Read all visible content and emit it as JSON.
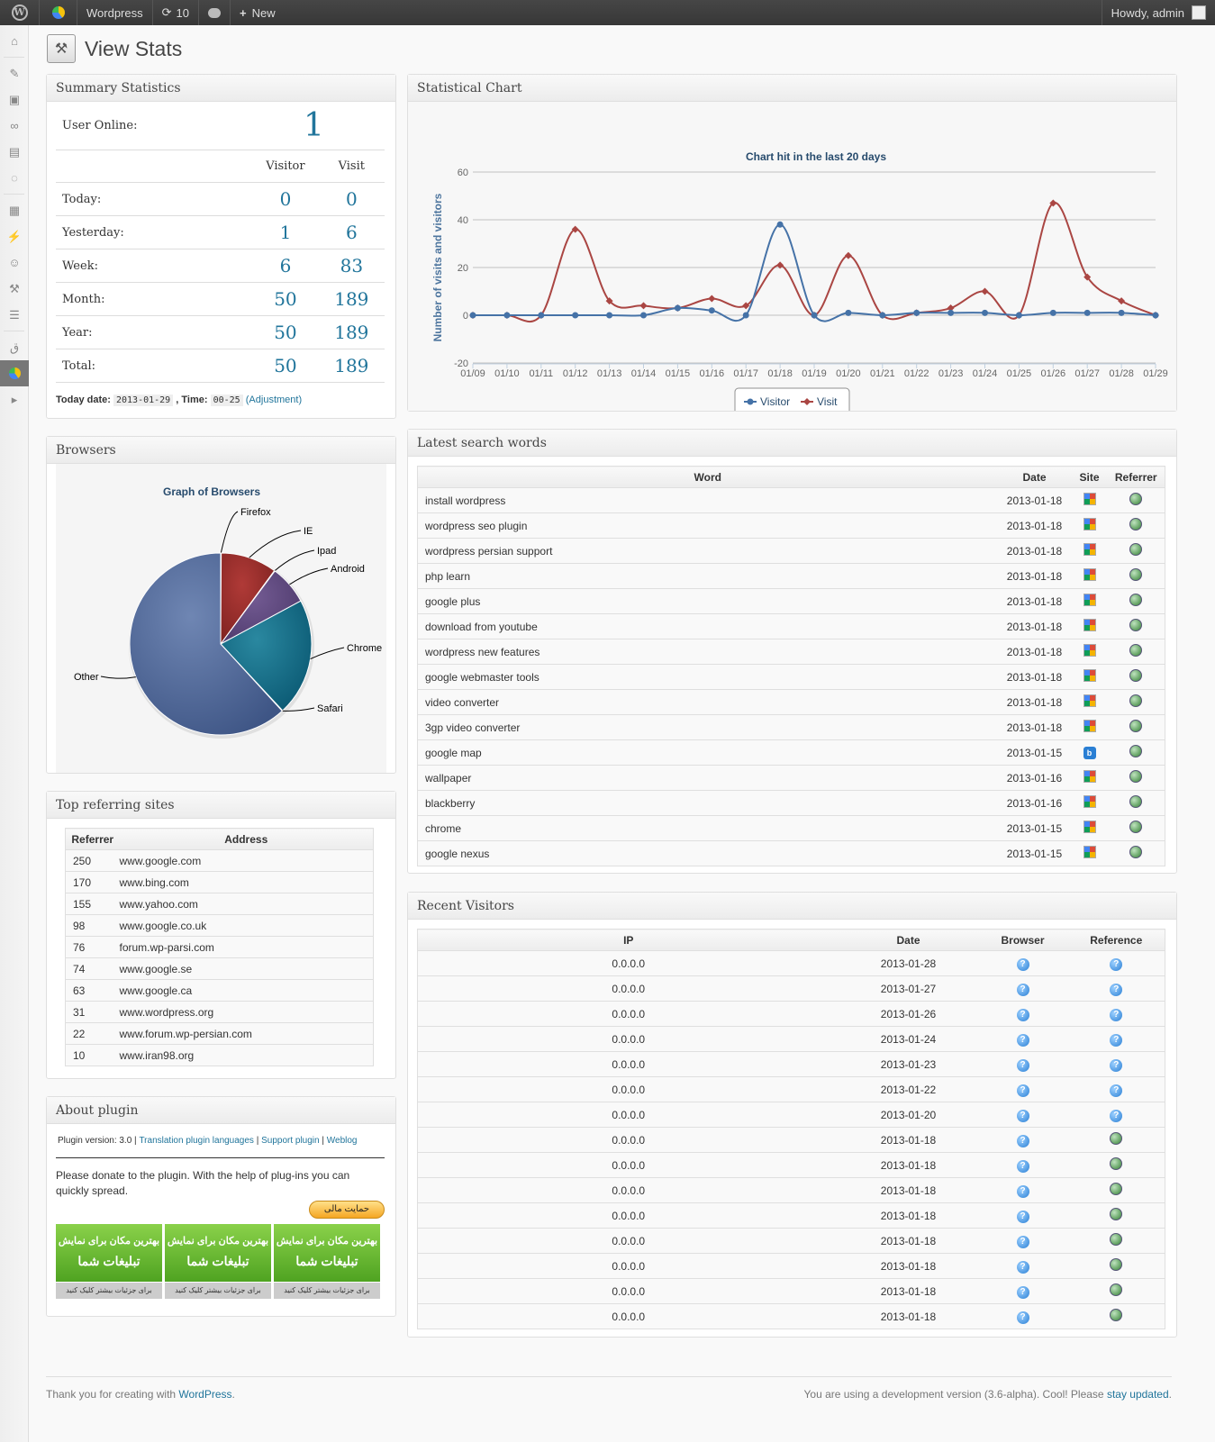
{
  "adminbar": {
    "site": "Wordpress",
    "updates": "10",
    "new_label": "New",
    "howdy": "Howdy, admin"
  },
  "page": {
    "title": "View Stats"
  },
  "summary": {
    "title": "Summary Statistics",
    "user_online_label": "User Online:",
    "user_online": "1",
    "col_visitor": "Visitor",
    "col_visit": "Visit",
    "rows": [
      {
        "label": "Today:",
        "visitor": "0",
        "visit": "0"
      },
      {
        "label": "Yesterday:",
        "visitor": "1",
        "visit": "6"
      },
      {
        "label": "Week:",
        "visitor": "6",
        "visit": "83"
      },
      {
        "label": "Month:",
        "visitor": "50",
        "visit": "189"
      },
      {
        "label": "Year:",
        "visitor": "50",
        "visit": "189"
      },
      {
        "label": "Total:",
        "visitor": "50",
        "visit": "189"
      }
    ],
    "today_label": "Today date:",
    "today_value": "2013-01-29",
    "time_label": ", Time:",
    "time_value": "00-25",
    "adjust": "(Adjustment)"
  },
  "browsers": {
    "title": "Browsers",
    "chart_title": "Graph of Browsers"
  },
  "referring": {
    "title": "Top referring sites",
    "col_ref": "Referrer",
    "col_addr": "Address",
    "rows": [
      {
        "n": "250",
        "a": "www.google.com"
      },
      {
        "n": "170",
        "a": "www.bing.com"
      },
      {
        "n": "155",
        "a": "www.yahoo.com"
      },
      {
        "n": "98",
        "a": "www.google.co.uk"
      },
      {
        "n": "76",
        "a": "forum.wp-parsi.com"
      },
      {
        "n": "74",
        "a": "www.google.se"
      },
      {
        "n": "63",
        "a": "www.google.ca"
      },
      {
        "n": "31",
        "a": "www.wordpress.org"
      },
      {
        "n": "22",
        "a": "www.forum.wp-persian.com"
      },
      {
        "n": "10",
        "a": "www.iran98.org"
      }
    ]
  },
  "about": {
    "title": "About plugin",
    "version": "Plugin version: 3.0",
    "links": [
      "Translation plugin languages",
      "Support plugin",
      "Weblog"
    ],
    "donate_text": "Please donate to the plugin. With the help of plug-ins you can quickly spread.",
    "donate_btn": "حمایت مالی",
    "ad_line1": "بهترین مکان برای نمایش",
    "ad_line2": "تبلیغات شما",
    "ad_more": "برای جزئیات بیشتر کلیک کنید"
  },
  "chart": {
    "title": "Statistical Chart"
  },
  "chart_data": [
    {
      "type": "line",
      "title": "Chart hit in the last 20 days",
      "ylabel": "Number of visits and visitors",
      "ylim": [
        -20,
        60
      ],
      "yticks": [
        -20,
        0,
        20,
        40,
        60
      ],
      "x": [
        "01/09",
        "01/10",
        "01/11",
        "01/12",
        "01/13",
        "01/14",
        "01/15",
        "01/16",
        "01/17",
        "01/18",
        "01/19",
        "01/20",
        "01/21",
        "01/22",
        "01/23",
        "01/24",
        "01/25",
        "01/26",
        "01/27",
        "01/28",
        "01/29"
      ],
      "series": [
        {
          "name": "Visitor",
          "color": "#4572a7",
          "values": [
            0,
            0,
            0,
            0,
            0,
            0,
            3,
            2,
            0,
            38,
            0,
            1,
            0,
            1,
            1,
            1,
            0,
            1,
            1,
            1,
            0
          ]
        },
        {
          "name": "Visit",
          "color": "#aa4643",
          "values": [
            0,
            0,
            0,
            36,
            6,
            4,
            3,
            7,
            4,
            21,
            0,
            25,
            0,
            1,
            3,
            10,
            0,
            47,
            16,
            6,
            0
          ]
        }
      ],
      "legend": "bottom-center"
    },
    {
      "type": "pie",
      "title": "Graph of Browsers",
      "labels": [
        "Firefox",
        "IE",
        "Ipad",
        "Android",
        "Chrome",
        "Safari",
        "Other"
      ],
      "values": [
        0.1,
        10,
        0.1,
        7,
        21,
        0.1,
        62
      ]
    }
  ],
  "search": {
    "title": "Latest search words",
    "col_word": "Word",
    "col_date": "Date",
    "col_site": "Site",
    "col_ref": "Referrer",
    "rows": [
      {
        "w": "install wordpress",
        "d": "2013-01-18",
        "s": "google-icon"
      },
      {
        "w": "wordpress seo plugin",
        "d": "2013-01-18",
        "s": "google-icon"
      },
      {
        "w": "wordpress persian support",
        "d": "2013-01-18",
        "s": "google-icon"
      },
      {
        "w": "php learn",
        "d": "2013-01-18",
        "s": "google-icon"
      },
      {
        "w": "google plus",
        "d": "2013-01-18",
        "s": "google-icon"
      },
      {
        "w": "download from youtube",
        "d": "2013-01-18",
        "s": "google-icon"
      },
      {
        "w": "wordpress new features",
        "d": "2013-01-18",
        "s": "google-icon"
      },
      {
        "w": "google webmaster tools",
        "d": "2013-01-18",
        "s": "google-icon"
      },
      {
        "w": "video converter",
        "d": "2013-01-18",
        "s": "google-icon"
      },
      {
        "w": "3gp video converter",
        "d": "2013-01-18",
        "s": "google-icon"
      },
      {
        "w": "google map",
        "d": "2013-01-15",
        "s": "bing-icon"
      },
      {
        "w": "wallpaper",
        "d": "2013-01-16",
        "s": "google-icon"
      },
      {
        "w": "blackberry",
        "d": "2013-01-16",
        "s": "google-icon"
      },
      {
        "w": "chrome",
        "d": "2013-01-15",
        "s": "google-icon"
      },
      {
        "w": "google nexus",
        "d": "2013-01-15",
        "s": "google-icon"
      }
    ]
  },
  "visitors": {
    "title": "Recent Visitors",
    "col_ip": "IP",
    "col_date": "Date",
    "col_browser": "Browser",
    "col_ref": "Reference",
    "rows": [
      {
        "ip": "0.0.0.0",
        "d": "2013-01-28",
        "r": "unknown-icon"
      },
      {
        "ip": "0.0.0.0",
        "d": "2013-01-27",
        "r": "unknown-icon"
      },
      {
        "ip": "0.0.0.0",
        "d": "2013-01-26",
        "r": "unknown-icon"
      },
      {
        "ip": "0.0.0.0",
        "d": "2013-01-24",
        "r": "unknown-icon"
      },
      {
        "ip": "0.0.0.0",
        "d": "2013-01-23",
        "r": "unknown-icon"
      },
      {
        "ip": "0.0.0.0",
        "d": "2013-01-22",
        "r": "unknown-icon"
      },
      {
        "ip": "0.0.0.0",
        "d": "2013-01-20",
        "r": "unknown-icon"
      },
      {
        "ip": "0.0.0.0",
        "d": "2013-01-18",
        "r": "globe-icon"
      },
      {
        "ip": "0.0.0.0",
        "d": "2013-01-18",
        "r": "globe-icon"
      },
      {
        "ip": "0.0.0.0",
        "d": "2013-01-18",
        "r": "globe-icon"
      },
      {
        "ip": "0.0.0.0",
        "d": "2013-01-18",
        "r": "globe-icon"
      },
      {
        "ip": "0.0.0.0",
        "d": "2013-01-18",
        "r": "globe-icon"
      },
      {
        "ip": "0.0.0.0",
        "d": "2013-01-18",
        "r": "globe-icon"
      },
      {
        "ip": "0.0.0.0",
        "d": "2013-01-18",
        "r": "globe-icon"
      },
      {
        "ip": "0.0.0.0",
        "d": "2013-01-18",
        "r": "globe-icon"
      }
    ]
  },
  "footer": {
    "left_text": "Thank you for creating with ",
    "left_link": "WordPress",
    "left_end": ".",
    "right_text": "You are using a development version (3.6-alpha). Cool! Please ",
    "right_link": "stay updated",
    "right_end": "."
  }
}
